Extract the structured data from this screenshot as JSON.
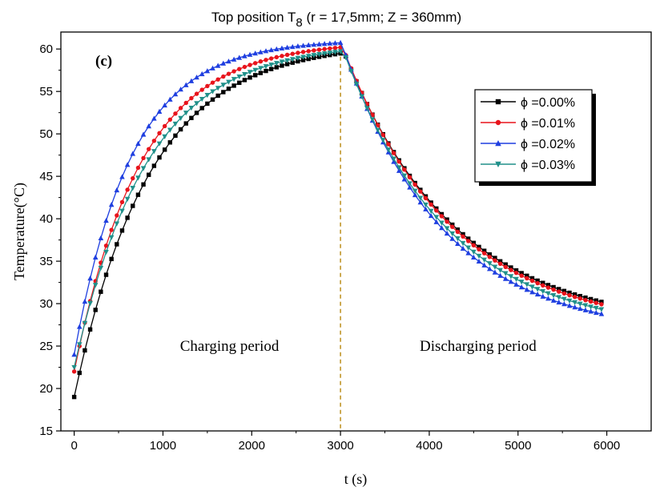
{
  "chart_data": {
    "type": "line",
    "title": {
      "prefix": "Top position  T",
      "subscript": "8",
      "suffix": " (r = 17,5mm;   Z = 360mm)"
    },
    "panel_label": "(c)",
    "xlabel": "t (s)",
    "ylabel": "Temperature(°C)",
    "xlim": [
      -150,
      6500
    ],
    "ylim": [
      15,
      62
    ],
    "xticks": [
      0,
      1000,
      2000,
      3000,
      4000,
      5000,
      6000
    ],
    "yticks": [
      15,
      20,
      25,
      30,
      35,
      40,
      45,
      50,
      55,
      60
    ],
    "grid": false,
    "legend_position": "top-right",
    "vline": {
      "x": 3000,
      "color": "#b8860b"
    },
    "annotations": [
      {
        "text": "Charging period",
        "x": 1750,
        "y": 25
      },
      {
        "text": "Discharging period",
        "x": 4550,
        "y": 25
      }
    ],
    "series": [
      {
        "name": "ϕ =0.00%",
        "color": "#000000",
        "marker": "square",
        "charge": {
          "start": 19.0,
          "end": 60.7,
          "tau": 850
        },
        "discharge": {
          "start": 60.7,
          "end": 27.0,
          "tau": 1250
        }
      },
      {
        "name": "ϕ =0.01%",
        "color": "#e8141c",
        "marker": "circle",
        "charge": {
          "start": 22.0,
          "end": 60.9,
          "tau": 750
        },
        "discharge": {
          "start": 60.9,
          "end": 26.8,
          "tau": 1230
        }
      },
      {
        "name": "ϕ =0.02%",
        "color": "#1f3fe0",
        "marker": "triangle-up",
        "charge": {
          "start": 24.0,
          "end": 61.1,
          "tau": 650
        },
        "discharge": {
          "start": 61.1,
          "end": 26.2,
          "tau": 1130
        }
      },
      {
        "name": "ϕ =0.03%",
        "color": "#20908a",
        "marker": "triangle-down",
        "charge": {
          "start": 22.5,
          "end": 60.7,
          "tau": 820
        },
        "discharge": {
          "start": 60.7,
          "end": 26.5,
          "tau": 1180
        }
      }
    ],
    "sampling": {
      "step": 60,
      "t_max": 5940
    }
  }
}
